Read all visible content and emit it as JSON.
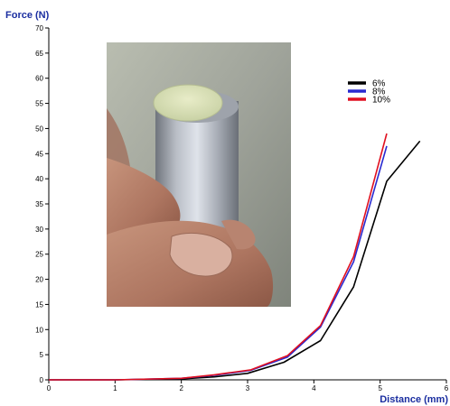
{
  "colors": {
    "axis_title": "#1a2ea0",
    "series_6": "#000000",
    "series_8": "#2a2ad0",
    "series_10": "#e01020"
  },
  "chart_data": {
    "type": "line",
    "xlabel": "Distance (mm)",
    "ylabel": "Force (N)",
    "xlim": [
      0,
      6
    ],
    "ylim": [
      0,
      70
    ],
    "x_ticks": [
      "0",
      "1",
      "2",
      "3",
      "4",
      "5",
      "6"
    ],
    "y_ticks": [
      "0",
      "5",
      "10",
      "15",
      "20",
      "25",
      "30",
      "35",
      "40",
      "45",
      "50",
      "55",
      "60",
      "65",
      "70"
    ],
    "grid": false,
    "legend_position": "top-right",
    "inset_image": "photo of a pale cylindrical sample on top of a metal cylinder held between fingers",
    "series": [
      {
        "name": "6%",
        "color": "#000000",
        "x": [
          0,
          1,
          2,
          2.5,
          3,
          3.55,
          4.1,
          4.6,
          5.1,
          5.6
        ],
        "y": [
          0,
          0,
          0.2,
          0.6,
          1.3,
          3.5,
          7.8,
          18.5,
          39.5,
          47.5
        ]
      },
      {
        "name": "8%",
        "color": "#2a2ad0",
        "x": [
          0,
          1,
          2,
          2.5,
          3.05,
          3.6,
          4.1,
          4.6,
          5.1
        ],
        "y": [
          0,
          0,
          0.3,
          0.9,
          1.9,
          4.5,
          10.5,
          23.5,
          46.5
        ]
      },
      {
        "name": "10%",
        "color": "#e01020",
        "x": [
          0,
          1,
          2,
          2.5,
          3.05,
          3.6,
          4.1,
          4.6,
          5.1
        ],
        "y": [
          0,
          0,
          0.3,
          1.0,
          2.0,
          4.8,
          10.8,
          24.5,
          49
        ]
      }
    ]
  }
}
